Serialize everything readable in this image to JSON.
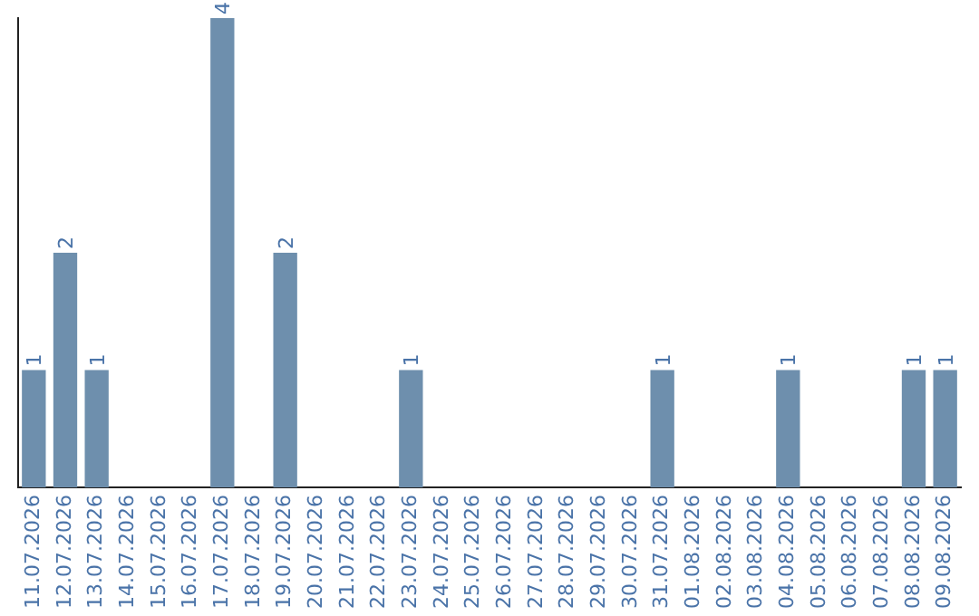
{
  "chart_data": {
    "type": "bar",
    "categories": [
      "11.07.2026",
      "12.07.2026",
      "13.07.2026",
      "14.07.2026",
      "15.07.2026",
      "16.07.2026",
      "17.07.2026",
      "18.07.2026",
      "19.07.2026",
      "20.07.2026",
      "21.07.2026",
      "22.07.2026",
      "23.07.2026",
      "24.07.2026",
      "25.07.2026",
      "26.07.2026",
      "27.07.2026",
      "28.07.2026",
      "29.07.2026",
      "30.07.2026",
      "31.07.2026",
      "01.08.2026",
      "02.08.2026",
      "03.08.2026",
      "04.08.2026",
      "05.08.2026",
      "06.08.2026",
      "07.08.2026",
      "08.08.2026",
      "09.08.2026"
    ],
    "values": [
      1,
      2,
      1,
      0,
      0,
      0,
      4,
      0,
      2,
      0,
      0,
      0,
      1,
      0,
      0,
      0,
      0,
      0,
      0,
      0,
      1,
      0,
      0,
      0,
      1,
      0,
      0,
      0,
      1,
      1
    ],
    "value_labels": [
      "1",
      "2",
      "1",
      null,
      null,
      null,
      "4",
      null,
      "2",
      null,
      null,
      null,
      "1",
      null,
      null,
      null,
      null,
      null,
      null,
      null,
      "1",
      null,
      null,
      null,
      "1",
      null,
      null,
      null,
      "1",
      "1"
    ],
    "color": "#6e8fad",
    "grid": false,
    "legend": false,
    "tick_labels": "x"
  }
}
